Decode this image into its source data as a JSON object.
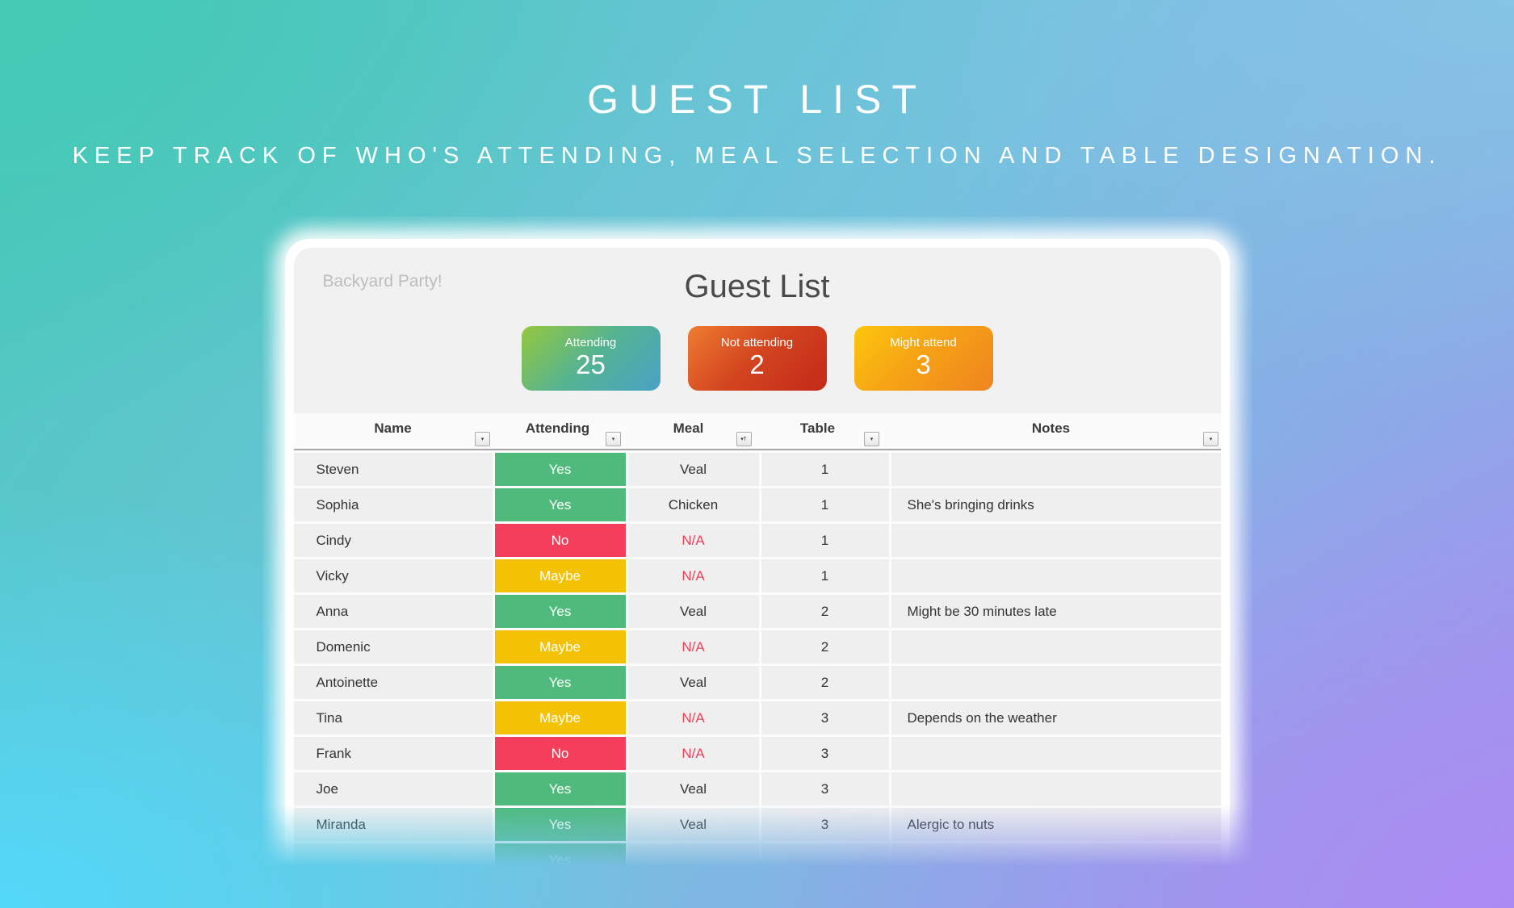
{
  "hero": {
    "title": "GUEST LIST",
    "subtitle": "KEEP TRACK OF WHO'S ATTENDING, MEAL SELECTION AND TABLE DESIGNATION."
  },
  "card": {
    "event_name": "Backyard Party!",
    "title": "Guest List",
    "stats": [
      {
        "label": "Attending",
        "value": "25",
        "gradient": [
          "#95C83D",
          "#55B392",
          "#48A2C6"
        ]
      },
      {
        "label": "Not attending",
        "value": "2",
        "gradient": [
          "#EE7C30",
          "#D2431F",
          "#C32A1A"
        ]
      },
      {
        "label": "Might attend",
        "value": "3",
        "gradient": [
          "#FDC60D",
          "#F5A016",
          "#EF8420"
        ]
      }
    ]
  },
  "table": {
    "columns": [
      {
        "label": "Name",
        "filter_icon": "chevron-down"
      },
      {
        "label": "Attending",
        "filter_icon": "chevron-down"
      },
      {
        "label": "Meal",
        "filter_icon": "sort-filter"
      },
      {
        "label": "Table",
        "filter_icon": "chevron-down"
      },
      {
        "label": "Notes",
        "filter_icon": "chevron-down"
      }
    ],
    "icons": {
      "chevron-down": "▾",
      "sort-filter": "▾↑"
    },
    "status_colors": {
      "Yes": "#4FBA7C",
      "No": "#F53D5C",
      "Maybe": "#F3C204"
    },
    "na_text_color": "#E8415A",
    "rows": [
      {
        "name": "Steven",
        "attending": "Yes",
        "meal": "Veal",
        "table": "1",
        "notes": ""
      },
      {
        "name": "Sophia",
        "attending": "Yes",
        "meal": "Chicken",
        "table": "1",
        "notes": "She's bringing drinks"
      },
      {
        "name": "Cindy",
        "attending": "No",
        "meal": "N/A",
        "table": "1",
        "notes": ""
      },
      {
        "name": "Vicky",
        "attending": "Maybe",
        "meal": "N/A",
        "table": "1",
        "notes": ""
      },
      {
        "name": "Anna",
        "attending": "Yes",
        "meal": "Veal",
        "table": "2",
        "notes": "Might be 30 minutes late"
      },
      {
        "name": "Domenic",
        "attending": "Maybe",
        "meal": "N/A",
        "table": "2",
        "notes": ""
      },
      {
        "name": "Antoinette",
        "attending": "Yes",
        "meal": "Veal",
        "table": "2",
        "notes": ""
      },
      {
        "name": "Tina",
        "attending": "Maybe",
        "meal": "N/A",
        "table": "3",
        "notes": "Depends on the weather"
      },
      {
        "name": "Frank",
        "attending": "No",
        "meal": "N/A",
        "table": "3",
        "notes": ""
      },
      {
        "name": "Joe",
        "attending": "Yes",
        "meal": "Veal",
        "table": "3",
        "notes": ""
      },
      {
        "name": "Miranda",
        "attending": "Yes",
        "meal": "Veal",
        "table": "3",
        "notes": "Alergic to nuts"
      }
    ],
    "partial_row": {
      "name": "",
      "attending": "Yes",
      "meal": "",
      "table": "",
      "notes": ""
    }
  }
}
